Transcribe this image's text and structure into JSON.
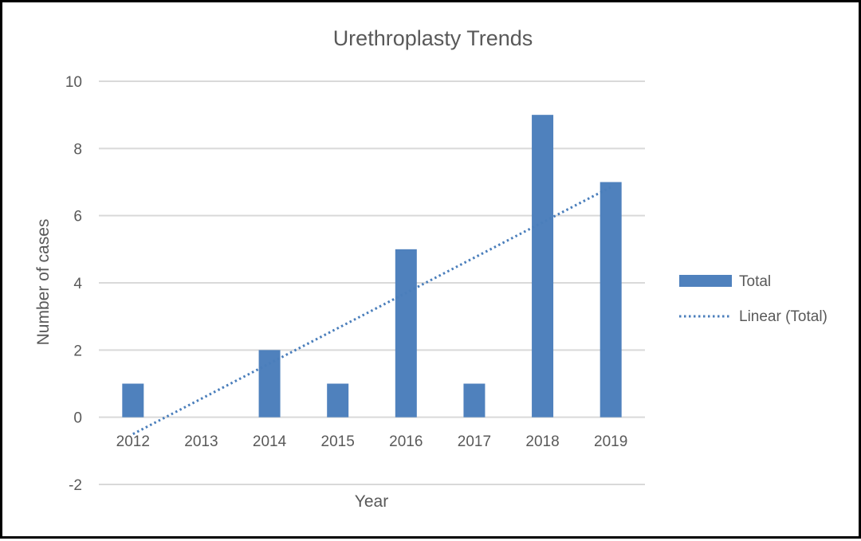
{
  "chart_data": {
    "type": "bar",
    "title": "Urethroplasty Trends",
    "xlabel": "Year",
    "ylabel": "Number of cases",
    "categories": [
      "2012",
      "2013",
      "2014",
      "2015",
      "2016",
      "2017",
      "2018",
      "2019"
    ],
    "series": [
      {
        "name": "Total",
        "type": "bar",
        "values": [
          1,
          0,
          2,
          1,
          5,
          1,
          9,
          7
        ]
      },
      {
        "name": "Linear (Total)",
        "type": "line",
        "style": "dotted",
        "values": [
          -0.5,
          0.55,
          1.6,
          2.65,
          3.7,
          4.75,
          5.8,
          6.85
        ]
      }
    ],
    "ylim": [
      -2,
      10
    ],
    "yticks": [
      -2,
      0,
      2,
      4,
      6,
      8,
      10
    ],
    "grid": true,
    "legend": "right",
    "colors": {
      "bar": "#4f81bd",
      "trend": "#4a7ebb",
      "grid": "#d9d9d9",
      "text": "#595959"
    }
  }
}
